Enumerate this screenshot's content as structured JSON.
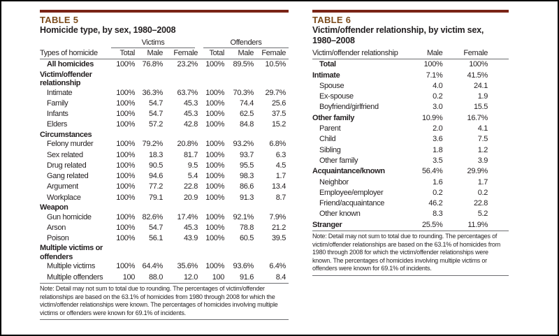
{
  "colors": {
    "rule": "#7a2416",
    "table_label": "#7a4a1a",
    "text": "#231f20"
  },
  "table5": {
    "number": "TABLE 5",
    "title": "Homicide type, by sex, 1980–2008",
    "group_headers": [
      "Victims",
      "Offenders"
    ],
    "columns": [
      "Types of homicide",
      "Total",
      "Male",
      "Female",
      "Total",
      "Male",
      "Female"
    ],
    "rows": [
      {
        "type": "total",
        "label": "All homicides",
        "values": [
          "100%",
          "76.8%",
          "23.2%",
          "100%",
          "89.5%",
          "10.5%"
        ]
      },
      {
        "type": "section",
        "label": "Victim/offender relationship"
      },
      {
        "type": "item",
        "label": "Intimate",
        "values": [
          "100%",
          "36.3%",
          "63.7%",
          "100%",
          "70.3%",
          "29.7%"
        ]
      },
      {
        "type": "item",
        "label": "Family",
        "values": [
          "100%",
          "54.7",
          "45.3",
          "100%",
          "74.4",
          "25.6"
        ]
      },
      {
        "type": "item",
        "label": "Infants",
        "values": [
          "100%",
          "54.7",
          "45.3",
          "100%",
          "62.5",
          "37.5"
        ]
      },
      {
        "type": "item",
        "label": "Elders",
        "values": [
          "100%",
          "57.2",
          "42.8",
          "100%",
          "84.8",
          "15.2"
        ]
      },
      {
        "type": "section",
        "label": "Circumstances"
      },
      {
        "type": "item",
        "label": "Felony murder",
        "values": [
          "100%",
          "79.2%",
          "20.8%",
          "100%",
          "93.2%",
          "6.8%"
        ]
      },
      {
        "type": "item",
        "label": "Sex related",
        "values": [
          "100%",
          "18.3",
          "81.7",
          "100%",
          "93.7",
          "6.3"
        ]
      },
      {
        "type": "item",
        "label": "Drug related",
        "values": [
          "100%",
          "90.5",
          "9.5",
          "100%",
          "95.5",
          "4.5"
        ]
      },
      {
        "type": "item",
        "label": "Gang related",
        "values": [
          "100%",
          "94.6",
          "5.4",
          "100%",
          "98.3",
          "1.7"
        ]
      },
      {
        "type": "item",
        "label": "Argument",
        "values": [
          "100%",
          "77.2",
          "22.8",
          "100%",
          "86.6",
          "13.4"
        ]
      },
      {
        "type": "item",
        "label": "Workplace",
        "values": [
          "100%",
          "79.1",
          "20.9",
          "100%",
          "91.3",
          "8.7"
        ]
      },
      {
        "type": "section",
        "label": "Weapon"
      },
      {
        "type": "item",
        "label": "Gun homicide",
        "values": [
          "100%",
          "82.6%",
          "17.4%",
          "100%",
          "92.1%",
          "7.9%"
        ]
      },
      {
        "type": "item",
        "label": "Arson",
        "values": [
          "100%",
          "54.7",
          "45.3",
          "100%",
          "78.8",
          "21.2"
        ]
      },
      {
        "type": "item",
        "label": "Poison",
        "values": [
          "100%",
          "56.1",
          "43.9",
          "100%",
          "60.5",
          "39.5"
        ]
      },
      {
        "type": "section",
        "label": "Multiple victims or offenders"
      },
      {
        "type": "item",
        "label": "Multiple victims",
        "values": [
          "100%",
          "64.4%",
          "35.6%",
          "100%",
          "93.6%",
          "6.4%"
        ]
      },
      {
        "type": "item",
        "label": "Multiple offenders",
        "values": [
          "100",
          "88.0",
          "12.0",
          "100",
          "91.6",
          "8.4"
        ]
      }
    ],
    "note": "Note: Detail may not sum to total due to rounding. The percentages of victim/offender relationships are based on the 63.1% of homicides from 1980 through 2008 for which the victim/offender relationships were known. The percentages of homicides involving multiple victims or offenders were known for 69.1% of incidents."
  },
  "table6": {
    "number": "TABLE 6",
    "title": "Victim/offender relationship, by victim sex, 1980–2008",
    "columns": [
      "Victim/offender relationship",
      "Male",
      "Female"
    ],
    "rows": [
      {
        "type": "total",
        "label": "Total",
        "values": [
          "100%",
          "100%"
        ]
      },
      {
        "type": "section",
        "label": "Intimate",
        "values": [
          "7.1%",
          "41.5%"
        ]
      },
      {
        "type": "item",
        "label": "Spouse",
        "values": [
          "4.0",
          "24.1"
        ]
      },
      {
        "type": "item",
        "label": "Ex-spouse",
        "values": [
          "0.2",
          "1.9"
        ]
      },
      {
        "type": "item",
        "label": "Boyfriend/girlfriend",
        "values": [
          "3.0",
          "15.5"
        ]
      },
      {
        "type": "section",
        "label": "Other family",
        "values": [
          "10.9%",
          "16.7%"
        ]
      },
      {
        "type": "item",
        "label": "Parent",
        "values": [
          "2.0",
          "4.1"
        ]
      },
      {
        "type": "item",
        "label": "Child",
        "values": [
          "3.6",
          "7.5"
        ]
      },
      {
        "type": "item",
        "label": "Sibling",
        "values": [
          "1.8",
          "1.2"
        ]
      },
      {
        "type": "item",
        "label": "Other family",
        "values": [
          "3.5",
          "3.9"
        ]
      },
      {
        "type": "section",
        "label": "Acquaintance/known",
        "values": [
          "56.4%",
          "29.9%"
        ]
      },
      {
        "type": "item",
        "label": "Neighbor",
        "values": [
          "1.6",
          "1.7"
        ]
      },
      {
        "type": "item",
        "label": "Employee/employer",
        "values": [
          "0.2",
          "0.2"
        ]
      },
      {
        "type": "item",
        "label": "Friend/acquaintance",
        "values": [
          "46.2",
          "22.8"
        ]
      },
      {
        "type": "item",
        "label": "Other known",
        "values": [
          "8.3",
          "5.2"
        ]
      },
      {
        "type": "section",
        "label": "Stranger",
        "values": [
          "25.5%",
          "11.9%"
        ]
      }
    ],
    "note": "Note: Detail may not sum to total due to rounding. The percentages of victim/offender relationships are based on the 63.1% of homicides from 1980 through 2008 for which the victim/offender relationships were known. The percentages of homicides involving multiple victims or offenders were known for 69.1% of incidents."
  }
}
